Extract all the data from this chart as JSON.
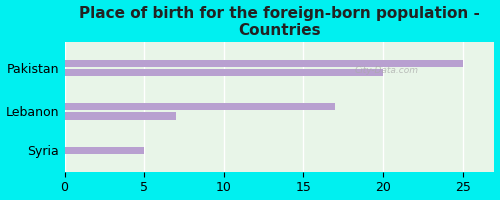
{
  "title": "Place of birth for the foreign-born population -\nCountries",
  "categories": [
    "Pakistan",
    "Lebanon",
    "Syria"
  ],
  "bar_pairs": [
    [
      25.0,
      20.0
    ],
    [
      17.0,
      7.0
    ],
    [
      5.0,
      null
    ]
  ],
  "bar_color": "#b8a0d0",
  "background_color": "#00f0f0",
  "plot_bg_color": "#e8f5e8",
  "xlim": [
    0,
    27
  ],
  "xticks": [
    0,
    5,
    10,
    15,
    20,
    25
  ],
  "grid_color": "#ffffff",
  "title_fontsize": 11,
  "label_fontsize": 9,
  "watermark": "City-Data.com"
}
